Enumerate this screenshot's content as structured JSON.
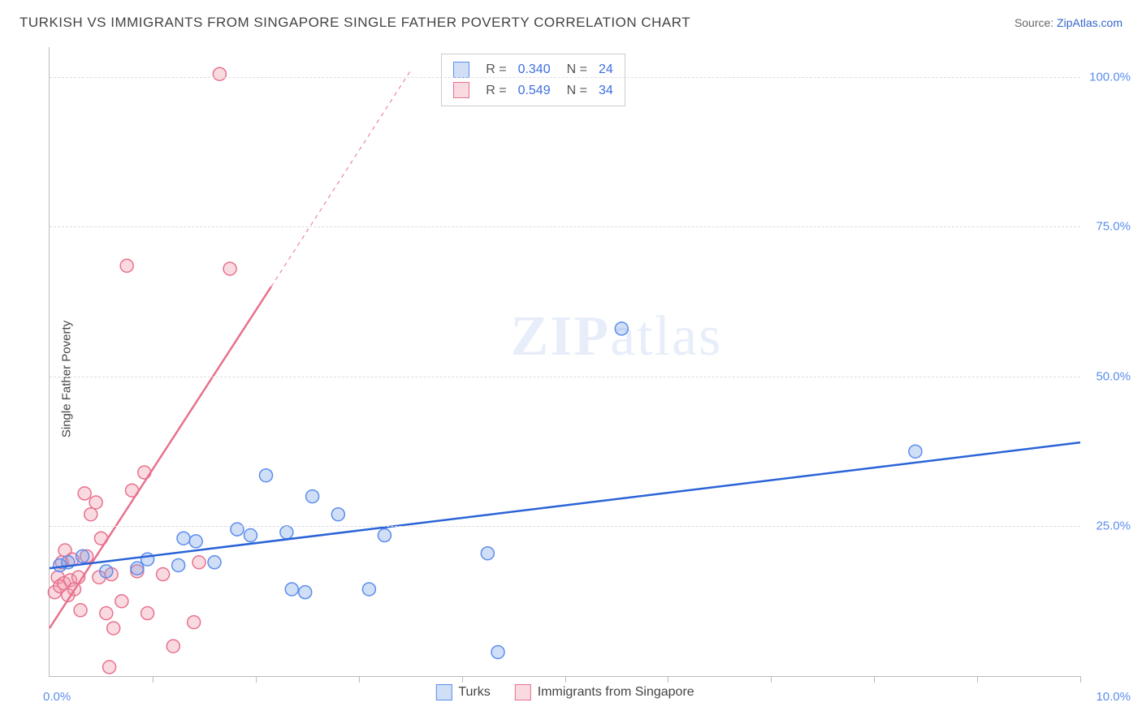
{
  "title": "TURKISH VS IMMIGRANTS FROM SINGAPORE SINGLE FATHER POVERTY CORRELATION CHART",
  "source_label": "Source: ",
  "source_name": "ZipAtlas.com",
  "y_axis_label": "Single Father Poverty",
  "watermark_zip": "ZIP",
  "watermark_atlas": "atlas",
  "chart": {
    "type": "scatter",
    "xlim": [
      0,
      10
    ],
    "ylim": [
      0,
      105
    ],
    "x_ticks": [
      0,
      1,
      2,
      3,
      4,
      5,
      6,
      7,
      8,
      9,
      10
    ],
    "x_tick_left_label": "0.0%",
    "x_tick_right_label": "10.0%",
    "y_gridlines": [
      25,
      50,
      75,
      100
    ],
    "y_tick_labels": [
      "25.0%",
      "50.0%",
      "75.0%",
      "100.0%"
    ],
    "background_color": "#ffffff",
    "grid_color": "#dddddd",
    "axis_color": "#bbbbbb",
    "tick_label_color": "#5b8def",
    "marker_radius": 8,
    "marker_stroke_width": 1.5,
    "series": {
      "blue": {
        "label": "Turks",
        "fill": "rgba(120,160,230,0.35)",
        "stroke": "#5b8def",
        "r_label": "R =",
        "r_value": "0.340",
        "n_label": "N =",
        "n_value": "24",
        "points": [
          [
            0.1,
            18.5
          ],
          [
            0.18,
            19.0
          ],
          [
            0.32,
            20.0
          ],
          [
            0.55,
            17.5
          ],
          [
            0.85,
            18.0
          ],
          [
            0.95,
            19.5
          ],
          [
            1.25,
            18.5
          ],
          [
            1.3,
            23.0
          ],
          [
            1.42,
            22.5
          ],
          [
            1.6,
            19.0
          ],
          [
            1.82,
            24.5
          ],
          [
            1.95,
            23.5
          ],
          [
            2.1,
            33.5
          ],
          [
            2.3,
            24.0
          ],
          [
            2.35,
            14.5
          ],
          [
            2.48,
            14.0
          ],
          [
            2.55,
            30.0
          ],
          [
            2.8,
            27.0
          ],
          [
            3.1,
            14.5
          ],
          [
            3.25,
            23.5
          ],
          [
            4.25,
            20.5
          ],
          [
            4.35,
            4.0
          ],
          [
            5.55,
            58.0
          ],
          [
            8.4,
            37.5
          ]
        ],
        "trend": {
          "x1": 0,
          "y1": 18.0,
          "x2": 10,
          "y2": 39.0,
          "stroke": "#2a63d8",
          "width": 2.5
        }
      },
      "pink": {
        "label": "Immigrants from Singapore",
        "fill": "rgba(240,150,170,0.35)",
        "stroke": "#e8718d",
        "r_label": "R =",
        "r_value": "0.549",
        "n_label": "N =",
        "n_value": "34",
        "points": [
          [
            0.05,
            14.0
          ],
          [
            0.08,
            16.5
          ],
          [
            0.1,
            15.0
          ],
          [
            0.12,
            19.0
          ],
          [
            0.14,
            15.5
          ],
          [
            0.15,
            21.0
          ],
          [
            0.18,
            13.5
          ],
          [
            0.2,
            16.0
          ],
          [
            0.22,
            19.5
          ],
          [
            0.24,
            14.5
          ],
          [
            0.28,
            16.5
          ],
          [
            0.3,
            11.0
          ],
          [
            0.34,
            30.5
          ],
          [
            0.36,
            20.0
          ],
          [
            0.4,
            27.0
          ],
          [
            0.45,
            29.0
          ],
          [
            0.48,
            16.5
          ],
          [
            0.5,
            23.0
          ],
          [
            0.55,
            10.5
          ],
          [
            0.6,
            17.0
          ],
          [
            0.62,
            8.0
          ],
          [
            0.7,
            12.5
          ],
          [
            0.8,
            31.0
          ],
          [
            0.85,
            17.5
          ],
          [
            0.92,
            34.0
          ],
          [
            0.95,
            10.5
          ],
          [
            1.1,
            17.0
          ],
          [
            1.2,
            5.0
          ],
          [
            1.4,
            9.0
          ],
          [
            1.45,
            19.0
          ],
          [
            1.65,
            100.5
          ],
          [
            1.75,
            68.0
          ],
          [
            0.75,
            68.5
          ],
          [
            0.58,
            1.5
          ]
        ],
        "trend_solid": {
          "x1": 0,
          "y1": 8.0,
          "x2": 2.15,
          "y2": 65.0,
          "stroke": "#e8718d",
          "width": 2.5
        },
        "trend_dashed": {
          "x1": 2.15,
          "y1": 65.0,
          "x2": 3.5,
          "y2": 101.0,
          "stroke": "#e8718d",
          "width": 1,
          "dash": "5,5"
        }
      }
    }
  }
}
